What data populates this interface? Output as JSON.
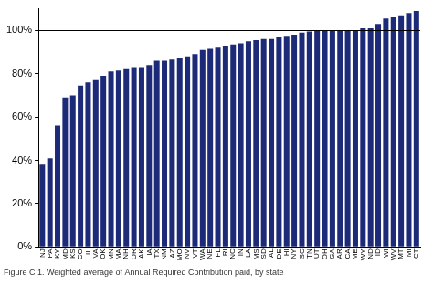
{
  "chart_data": {
    "type": "bar",
    "title": "Figure C 1. Weighted average of Annual Required Contribution paid, by state",
    "categories": [
      "NJ",
      "PA",
      "KY",
      "MD",
      "KS",
      "CO",
      "IL",
      "VA",
      "OK",
      "MN",
      "MA",
      "NH",
      "OR",
      "AK",
      "IA",
      "TX",
      "NM",
      "AZ",
      "MO",
      "NV",
      "VT",
      "WA",
      "NE",
      "FL",
      "RI",
      "NC",
      "IN",
      "LA",
      "MS",
      "SD",
      "AL",
      "DE",
      "HI",
      "NY",
      "SC",
      "TN",
      "UT",
      "OH",
      "GA",
      "AR",
      "CA",
      "ME",
      "WY",
      "ND",
      "ID",
      "WI",
      "WV",
      "MT",
      "MI",
      "CT"
    ],
    "values": [
      38,
      41,
      56,
      69,
      70,
      74.5,
      76,
      77,
      79,
      81,
      81.5,
      82.5,
      83,
      83,
      84,
      86,
      86,
      86.5,
      87.5,
      88,
      89,
      91,
      91.5,
      92,
      93,
      93.5,
      94,
      95,
      95.5,
      96,
      96,
      97,
      97.5,
      98,
      99,
      99.5,
      100,
      100,
      100,
      100,
      100,
      100,
      101,
      101,
      103,
      105.5,
      106,
      107,
      108,
      109
    ],
    "color": "#1c2a78",
    "ylim": [
      0,
      110
    ],
    "yticks": [
      {
        "value": 0,
        "label": "0%"
      },
      {
        "value": 20,
        "label": "20%"
      },
      {
        "value": 40,
        "label": "40%"
      },
      {
        "value": 60,
        "label": "60%"
      },
      {
        "value": 80,
        "label": "80%"
      },
      {
        "value": 100,
        "label": "100%"
      }
    ],
    "reference_line": 100,
    "grid": false
  }
}
